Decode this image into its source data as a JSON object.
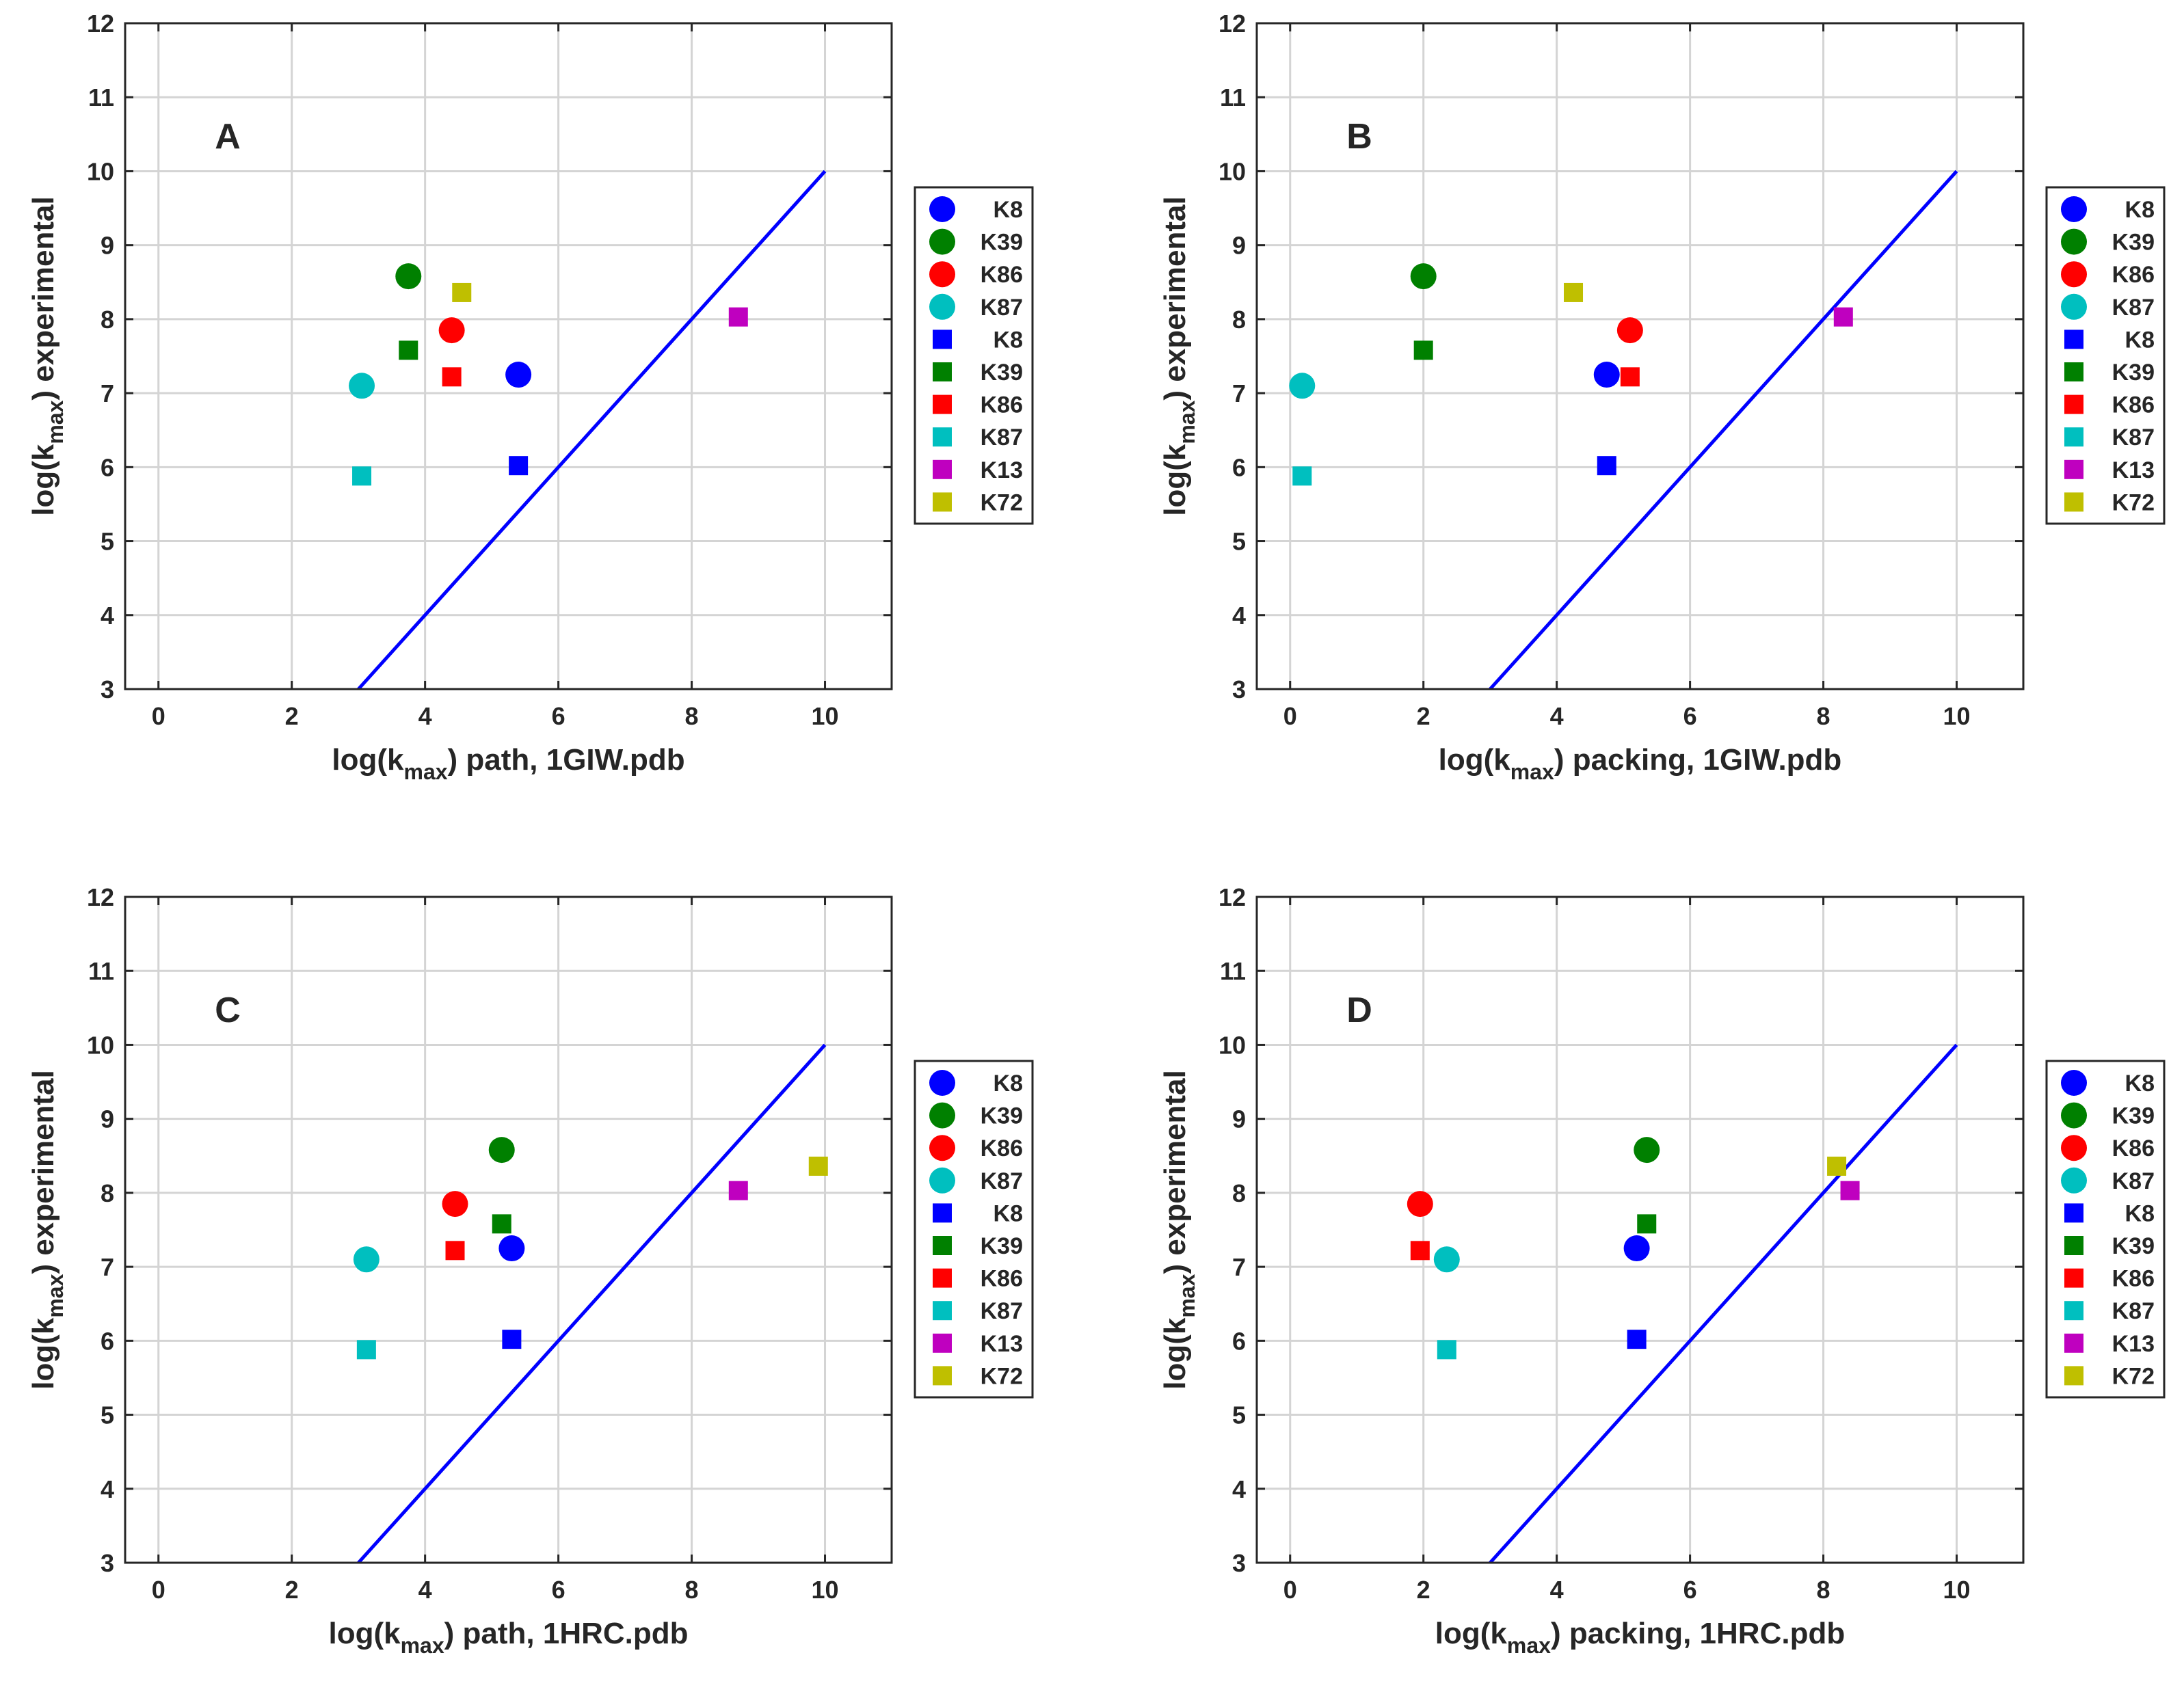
{
  "chart_data": [
    {
      "type": "scatter",
      "panel": "A",
      "xlabel": {
        "pre": "log(k",
        "sub": "max",
        "post": ") path, 1GIW.pdb"
      },
      "ylabel": {
        "pre": "log(k",
        "sub": "max",
        "post": ") experimental"
      },
      "xlim": [
        -0.5,
        11
      ],
      "ylim": [
        3,
        12
      ],
      "xticks": [
        "0",
        "2",
        "4",
        "6",
        "8",
        "10"
      ],
      "yticks": [
        "3",
        "4",
        "5",
        "6",
        "7",
        "8",
        "9",
        "10",
        "11",
        "12"
      ],
      "grid": true,
      "legend_position": "outside-right",
      "reference_line": {
        "x": [
          3,
          10
        ],
        "y": [
          3,
          10
        ],
        "color": "#0000ff"
      },
      "series": [
        {
          "name": "K8",
          "marker": "circle",
          "color": "#0000ff",
          "x": 5.4,
          "y": 7.25
        },
        {
          "name": "K39",
          "marker": "circle",
          "color": "#008000",
          "x": 3.75,
          "y": 8.58
        },
        {
          "name": "K86",
          "marker": "circle",
          "color": "#ff0000",
          "x": 4.4,
          "y": 7.85
        },
        {
          "name": "K87",
          "marker": "circle",
          "color": "#00bfbf",
          "x": 3.05,
          "y": 7.1
        },
        {
          "name": "K8",
          "marker": "square",
          "color": "#0000ff",
          "x": 5.4,
          "y": 6.02
        },
        {
          "name": "K39",
          "marker": "square",
          "color": "#008000",
          "x": 3.75,
          "y": 7.58
        },
        {
          "name": "K86",
          "marker": "square",
          "color": "#ff0000",
          "x": 4.4,
          "y": 7.22
        },
        {
          "name": "K87",
          "marker": "square",
          "color": "#00bfbf",
          "x": 3.05,
          "y": 5.88
        },
        {
          "name": "K13",
          "marker": "square",
          "color": "#bf00bf",
          "x": 8.7,
          "y": 8.03
        },
        {
          "name": "K72",
          "marker": "square",
          "color": "#bfbf00",
          "x": 4.55,
          "y": 8.36
        }
      ]
    },
    {
      "type": "scatter",
      "panel": "B",
      "xlabel": {
        "pre": "log(k",
        "sub": "max",
        "post": ") packing, 1GIW.pdb"
      },
      "ylabel": {
        "pre": "log(k",
        "sub": "max",
        "post": ") experimental"
      },
      "xlim": [
        -0.5,
        11
      ],
      "ylim": [
        3,
        12
      ],
      "xticks": [
        "0",
        "2",
        "4",
        "6",
        "8",
        "10"
      ],
      "yticks": [
        "3",
        "4",
        "5",
        "6",
        "7",
        "8",
        "9",
        "10",
        "11",
        "12"
      ],
      "grid": true,
      "legend_position": "outside-right",
      "reference_line": {
        "x": [
          3,
          10
        ],
        "y": [
          3,
          10
        ],
        "color": "#0000ff"
      },
      "series": [
        {
          "name": "K8",
          "marker": "circle",
          "color": "#0000ff",
          "x": 4.75,
          "y": 7.25
        },
        {
          "name": "K39",
          "marker": "circle",
          "color": "#008000",
          "x": 2.0,
          "y": 8.58
        },
        {
          "name": "K86",
          "marker": "circle",
          "color": "#ff0000",
          "x": 5.1,
          "y": 7.85
        },
        {
          "name": "K87",
          "marker": "circle",
          "color": "#00bfbf",
          "x": 0.18,
          "y": 7.1
        },
        {
          "name": "K8",
          "marker": "square",
          "color": "#0000ff",
          "x": 4.75,
          "y": 6.02
        },
        {
          "name": "K39",
          "marker": "square",
          "color": "#008000",
          "x": 2.0,
          "y": 7.58
        },
        {
          "name": "K86",
          "marker": "square",
          "color": "#ff0000",
          "x": 5.1,
          "y": 7.22
        },
        {
          "name": "K87",
          "marker": "square",
          "color": "#00bfbf",
          "x": 0.18,
          "y": 5.88
        },
        {
          "name": "K13",
          "marker": "square",
          "color": "#bf00bf",
          "x": 8.3,
          "y": 8.03
        },
        {
          "name": "K72",
          "marker": "square",
          "color": "#bfbf00",
          "x": 4.25,
          "y": 8.36
        }
      ]
    },
    {
      "type": "scatter",
      "panel": "C",
      "xlabel": {
        "pre": "log(k",
        "sub": "max",
        "post": ") path, 1HRC.pdb"
      },
      "ylabel": {
        "pre": "log(k",
        "sub": "max",
        "post": ") experimental"
      },
      "xlim": [
        -0.5,
        11
      ],
      "ylim": [
        3,
        12
      ],
      "xticks": [
        "0",
        "2",
        "4",
        "6",
        "8",
        "10"
      ],
      "yticks": [
        "3",
        "4",
        "5",
        "6",
        "7",
        "8",
        "9",
        "10",
        "11",
        "12"
      ],
      "grid": true,
      "legend_position": "outside-right",
      "reference_line": {
        "x": [
          3,
          10
        ],
        "y": [
          3,
          10
        ],
        "color": "#0000ff"
      },
      "series": [
        {
          "name": "K8",
          "marker": "circle",
          "color": "#0000ff",
          "x": 5.3,
          "y": 7.25
        },
        {
          "name": "K39",
          "marker": "circle",
          "color": "#008000",
          "x": 5.15,
          "y": 8.58
        },
        {
          "name": "K86",
          "marker": "circle",
          "color": "#ff0000",
          "x": 4.45,
          "y": 7.85
        },
        {
          "name": "K87",
          "marker": "circle",
          "color": "#00bfbf",
          "x": 3.12,
          "y": 7.1
        },
        {
          "name": "K8",
          "marker": "square",
          "color": "#0000ff",
          "x": 5.3,
          "y": 6.02
        },
        {
          "name": "K39",
          "marker": "square",
          "color": "#008000",
          "x": 5.15,
          "y": 7.58
        },
        {
          "name": "K86",
          "marker": "square",
          "color": "#ff0000",
          "x": 4.45,
          "y": 7.22
        },
        {
          "name": "K87",
          "marker": "square",
          "color": "#00bfbf",
          "x": 3.12,
          "y": 5.88
        },
        {
          "name": "K13",
          "marker": "square",
          "color": "#bf00bf",
          "x": 8.7,
          "y": 8.03
        },
        {
          "name": "K72",
          "marker": "square",
          "color": "#bfbf00",
          "x": 9.9,
          "y": 8.36
        }
      ]
    },
    {
      "type": "scatter",
      "panel": "D",
      "xlabel": {
        "pre": "log(k",
        "sub": "max",
        "post": ") packing, 1HRC.pdb"
      },
      "ylabel": {
        "pre": "log(k",
        "sub": "max",
        "post": ") experimental"
      },
      "xlim": [
        -0.5,
        11
      ],
      "ylim": [
        3,
        12
      ],
      "xticks": [
        "0",
        "2",
        "4",
        "6",
        "8",
        "10"
      ],
      "yticks": [
        "3",
        "4",
        "5",
        "6",
        "7",
        "8",
        "9",
        "10",
        "11",
        "12"
      ],
      "grid": true,
      "legend_position": "outside-right",
      "reference_line": {
        "x": [
          3,
          10
        ],
        "y": [
          3,
          10
        ],
        "color": "#0000ff"
      },
      "series": [
        {
          "name": "K8",
          "marker": "circle",
          "color": "#0000ff",
          "x": 5.2,
          "y": 7.25
        },
        {
          "name": "K39",
          "marker": "circle",
          "color": "#008000",
          "x": 5.35,
          "y": 8.58
        },
        {
          "name": "K86",
          "marker": "circle",
          "color": "#ff0000",
          "x": 1.95,
          "y": 7.85
        },
        {
          "name": "K87",
          "marker": "circle",
          "color": "#00bfbf",
          "x": 2.35,
          "y": 7.1
        },
        {
          "name": "K8",
          "marker": "square",
          "color": "#0000ff",
          "x": 5.2,
          "y": 6.02
        },
        {
          "name": "K39",
          "marker": "square",
          "color": "#008000",
          "x": 5.35,
          "y": 7.58
        },
        {
          "name": "K86",
          "marker": "square",
          "color": "#ff0000",
          "x": 1.95,
          "y": 7.22
        },
        {
          "name": "K87",
          "marker": "square",
          "color": "#00bfbf",
          "x": 2.35,
          "y": 5.88
        },
        {
          "name": "K13",
          "marker": "square",
          "color": "#bf00bf",
          "x": 8.4,
          "y": 8.03
        },
        {
          "name": "K72",
          "marker": "square",
          "color": "#bfbf00",
          "x": 8.2,
          "y": 8.36
        }
      ]
    }
  ]
}
